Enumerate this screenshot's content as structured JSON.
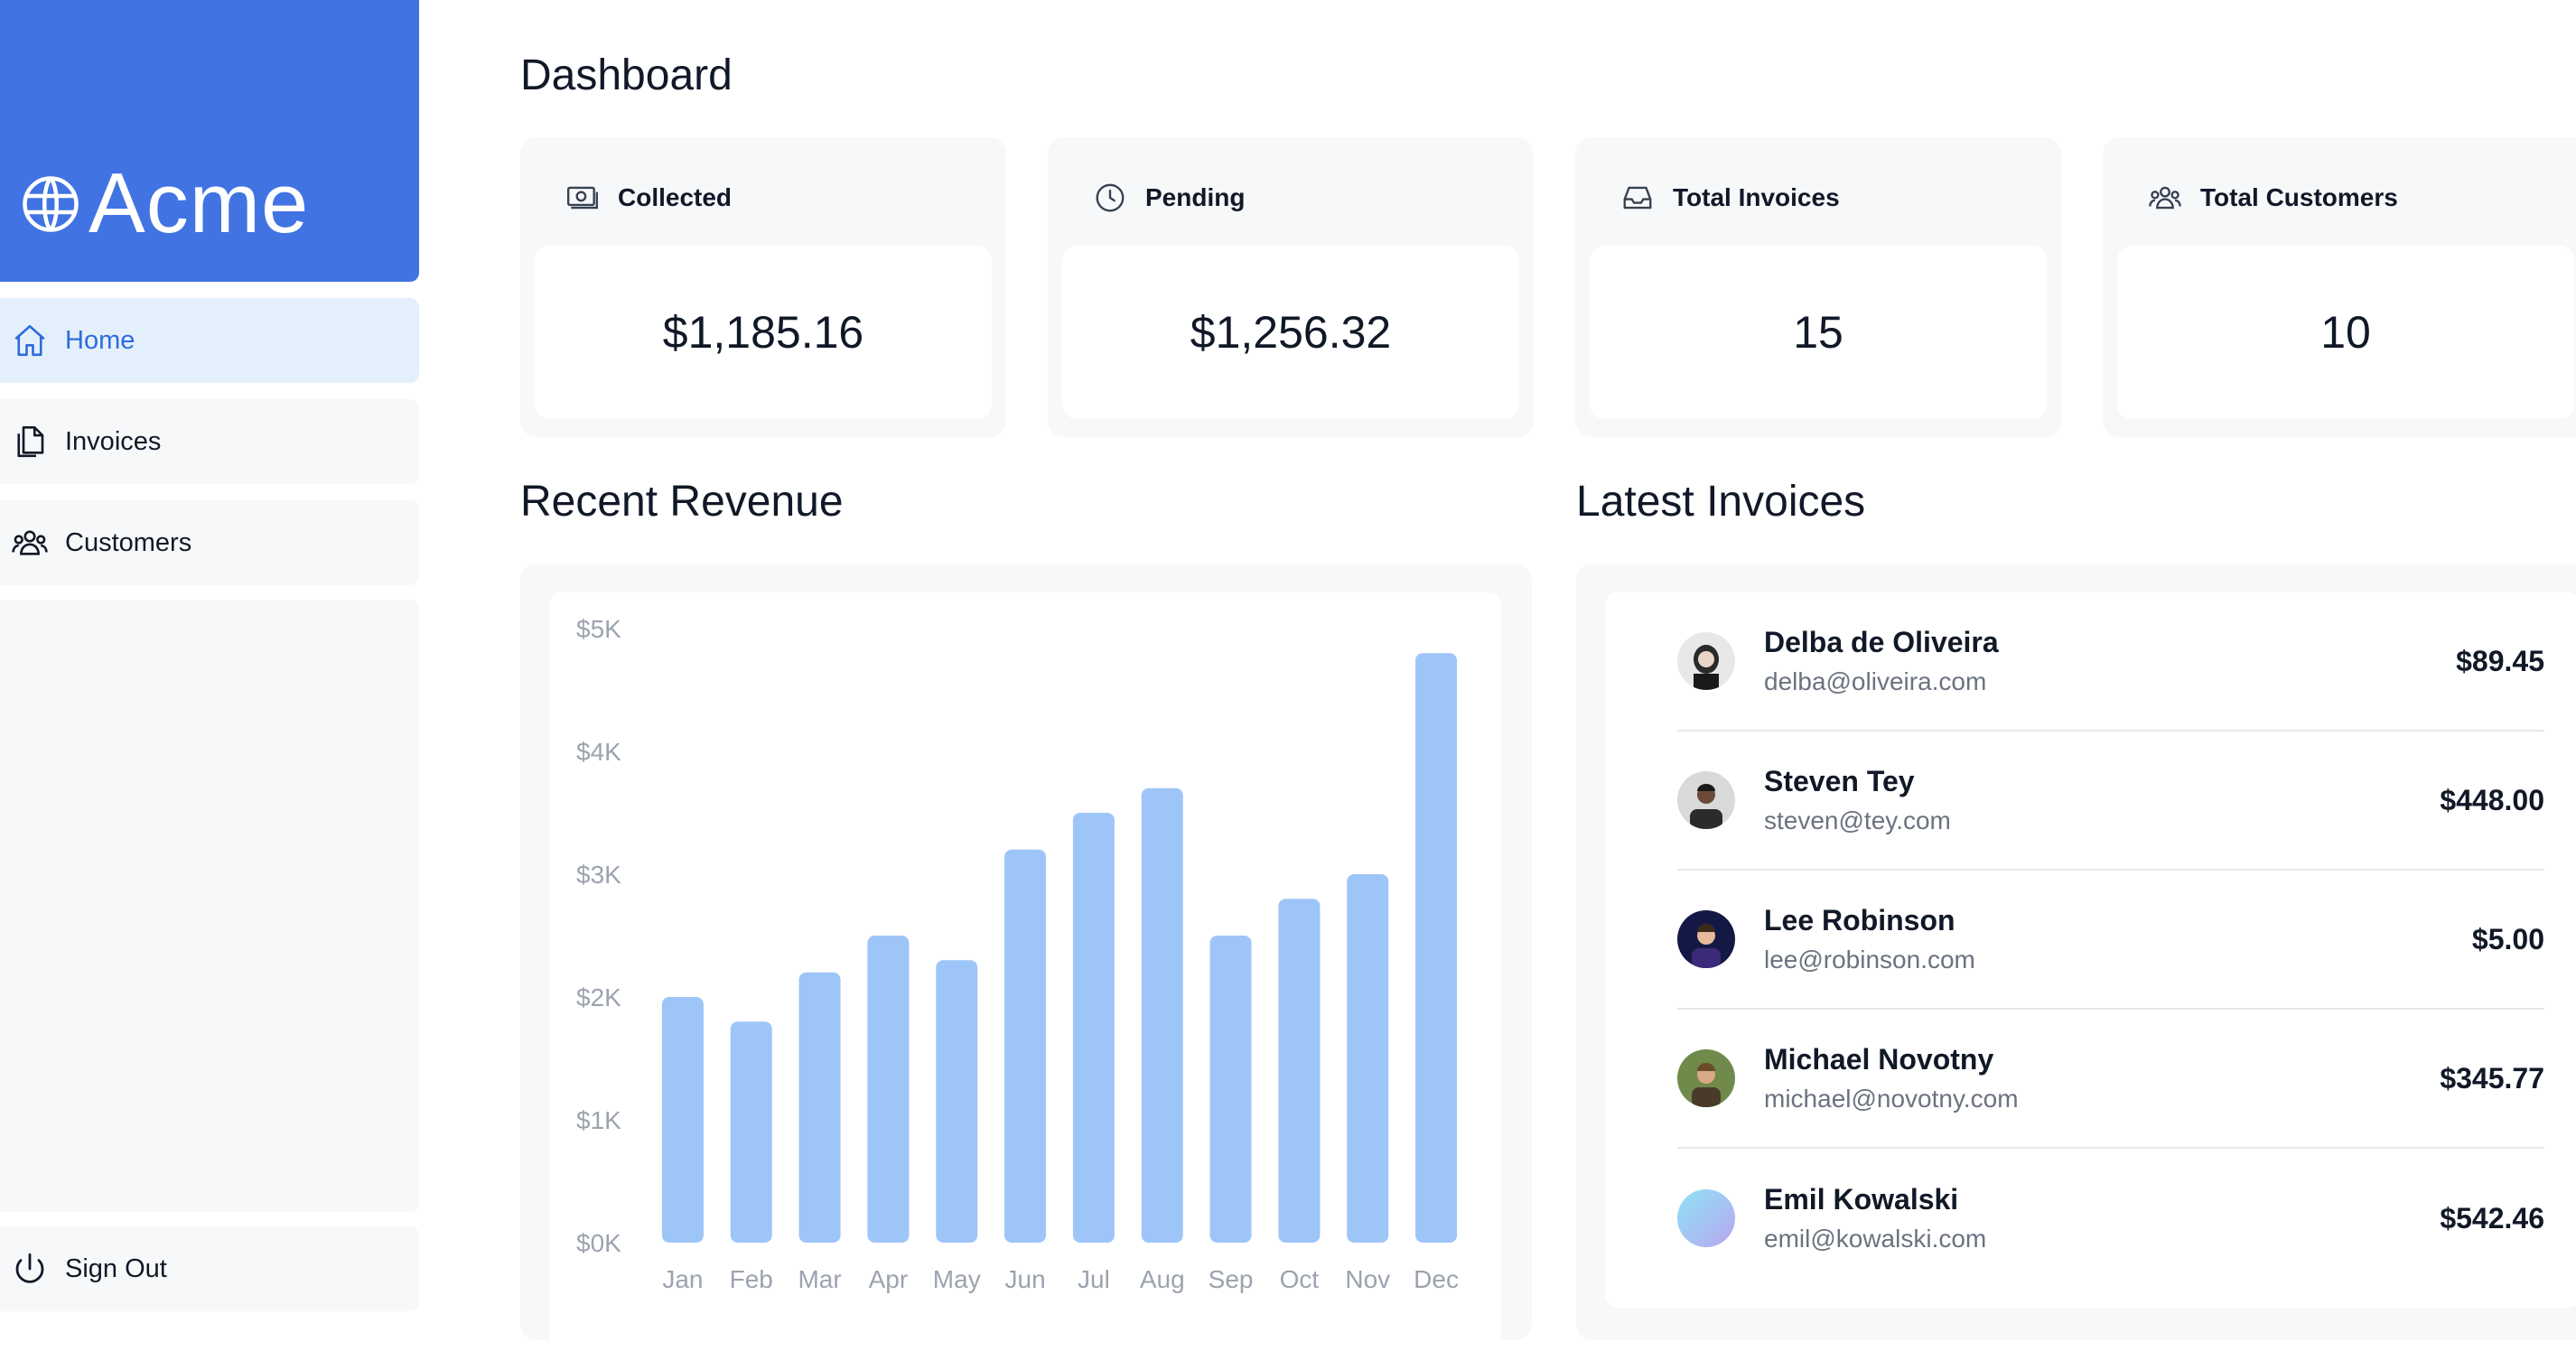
{
  "brand": {
    "name": "Acme"
  },
  "sidebar": {
    "items": [
      {
        "label": "Home",
        "icon": "home-icon",
        "active": true
      },
      {
        "label": "Invoices",
        "icon": "documents-icon",
        "active": false
      },
      {
        "label": "Customers",
        "icon": "users-icon",
        "active": false
      }
    ],
    "signout_label": "Sign Out"
  },
  "page": {
    "title": "Dashboard"
  },
  "cards": [
    {
      "title": "Collected",
      "value": "$1,185.16",
      "icon": "banknotes-icon"
    },
    {
      "title": "Pending",
      "value": "$1,256.32",
      "icon": "clock-icon"
    },
    {
      "title": "Total Invoices",
      "value": "15",
      "icon": "inbox-icon"
    },
    {
      "title": "Total Customers",
      "value": "10",
      "icon": "users-icon"
    }
  ],
  "revenue": {
    "title": "Recent Revenue"
  },
  "chart_data": {
    "type": "bar",
    "categories": [
      "Jan",
      "Feb",
      "Mar",
      "Apr",
      "May",
      "Jun",
      "Jul",
      "Aug",
      "Sep",
      "Oct",
      "Nov",
      "Dec"
    ],
    "values": [
      2000,
      1800,
      2200,
      2500,
      2300,
      3200,
      3500,
      3700,
      2500,
      2800,
      3000,
      4800
    ],
    "y_ticks": [
      "$5K",
      "$4K",
      "$3K",
      "$2K",
      "$1K",
      "$0K"
    ],
    "ylim": [
      0,
      5000
    ],
    "bar_color": "#9ec5f8",
    "title": "",
    "xlabel": "",
    "ylabel": ""
  },
  "invoices": {
    "title": "Latest Invoices",
    "rows": [
      {
        "name": "Delba de Oliveira",
        "email": "delba@oliveira.com",
        "amount": "$89.45",
        "avatar_color": "#2a2a2a"
      },
      {
        "name": "Steven Tey",
        "email": "steven@tey.com",
        "amount": "$448.00",
        "avatar_color": "#3b3b3b"
      },
      {
        "name": "Lee Robinson",
        "email": "lee@robinson.com",
        "amount": "$5.00",
        "avatar_color": "#1e2a78"
      },
      {
        "name": "Michael Novotny",
        "email": "michael@novotny.com",
        "amount": "$345.77",
        "avatar_color": "#7a8a4a"
      },
      {
        "name": "Emil Kowalski",
        "email": "emil@kowalski.com",
        "amount": "$542.46",
        "avatar_color": "#9fd8f0"
      }
    ]
  },
  "colors": {
    "brand": "#4173e3",
    "active_nav_bg": "#e3f0fc",
    "active_nav_text": "#2f6bdc",
    "panel_bg": "#f7f8fa"
  }
}
